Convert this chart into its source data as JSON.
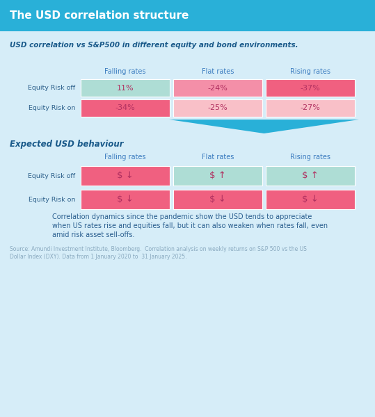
{
  "title": "The USD correlation structure",
  "title_bg": "#29b0d8",
  "title_color": "#ffffff",
  "bg_color": "#d6edf8",
  "subtitle1": "USD correlation vs S&P500 in different equity and bond environments.",
  "subtitle2": "Expected USD behaviour",
  "col_headers": [
    "Falling rates",
    "Flat rates",
    "Rising rates"
  ],
  "row_headers1": [
    "Equity Risk off",
    "Equity Risk on"
  ],
  "table1_values": [
    [
      "11%",
      "-24%",
      "-37%"
    ],
    [
      "-34%",
      "-25%",
      "-27%"
    ]
  ],
  "table1_colors": [
    [
      "#aeddd5",
      "#f48fa8",
      "#f06080"
    ],
    [
      "#f06080",
      "#f9c0c8",
      "#f9c0c8"
    ]
  ],
  "table2_symbols": [
    [
      "$ ↓",
      "$ ↑",
      "$ ↑"
    ],
    [
      "$ ↓",
      "$ ↓",
      "$ ↓"
    ]
  ],
  "table2_colors": [
    [
      "#f06080",
      "#aeddd5",
      "#aeddd5"
    ],
    [
      "#f06080",
      "#f06080",
      "#f06080"
    ]
  ],
  "row_headers2": [
    "Equity Risk off",
    "Equity Risk on"
  ],
  "note_text": "Correlation dynamics since the pandemic show the USD tends to appreciate\nwhen US rates rise and equities fall, but it can also weaken when rates fall, even\namid risk asset sell-offs.",
  "source_text": "Source: Amundi Investment Institute, Bloomberg.  Correlation analysis on weekly returns on S&P 500 vs the US\nDollar Index (DXY). Data from 1 January 2020 to  31 January 2025.",
  "header_color": "#3a7bbf",
  "row_label_color": "#2c5f8a",
  "cell_text_color": "#b03060",
  "arrow_color": "#29b0d8",
  "note_color": "#2c6090",
  "source_color": "#8aaac0"
}
